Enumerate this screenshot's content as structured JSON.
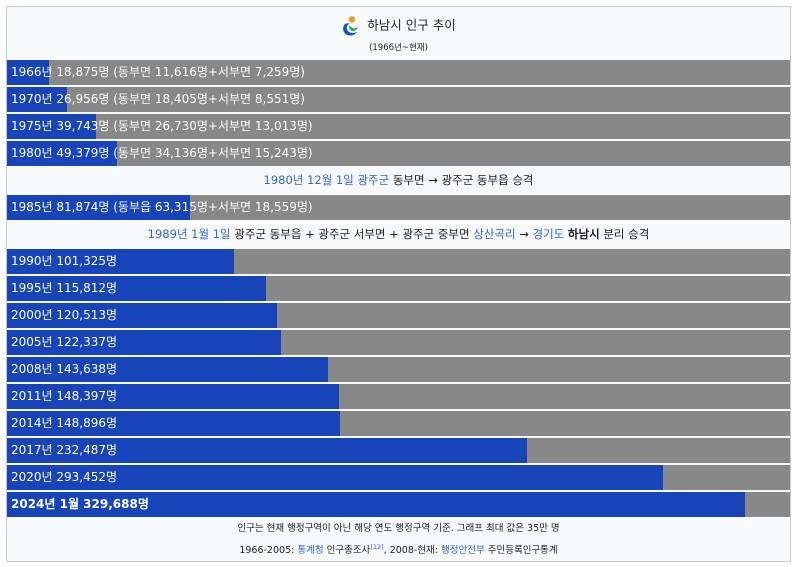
{
  "title": "하남시 인구 추이",
  "subtitle": "(1966년~현재)",
  "colors": {
    "fill": "#1744b8",
    "track": "#888888",
    "link": "#3366cc",
    "background": "#f8f9fa"
  },
  "logo_icon": "hanam-city-emblem-icon",
  "chart_data": {
    "type": "bar",
    "orientation": "horizontal",
    "xlim": [
      0,
      350000
    ],
    "unit": "명",
    "categories": [
      "1966년",
      "1970년",
      "1975년",
      "1980년",
      "1985년",
      "1990년",
      "1995년",
      "2000년",
      "2005년",
      "2008년",
      "2011년",
      "2014년",
      "2017년",
      "2020년",
      "2024년 1월"
    ],
    "values": [
      18875,
      26956,
      39743,
      49379,
      81874,
      101325,
      115812,
      120513,
      122337,
      143638,
      148397,
      148896,
      232487,
      293452,
      329688
    ]
  },
  "rows": [
    {
      "label": "1966년 18,875명 (동부면 11,616명+서부면 7,259명)"
    },
    {
      "label": "1970년 26,956명 (동부면 18,405명+서부면 8,551명)"
    },
    {
      "label": "1975년 39,743명 (동부면 26,730명+서부면 13,013명)"
    },
    {
      "label": "1980년 49,379명 (동부면 34,136명+서부면 15,243명)"
    },
    {
      "label": "1985년 81,874명 (동부읍 63,315명+서부면 18,559명)"
    },
    {
      "label": "1990년 101,325명"
    },
    {
      "label": "1995년 115,812명"
    },
    {
      "label": "2000년 120,513명"
    },
    {
      "label": "2005년 122,337명"
    },
    {
      "label": "2008년 143,638명"
    },
    {
      "label": "2011년 148,397명"
    },
    {
      "label": "2014년 148,896명"
    },
    {
      "label": "2017년 232,487명"
    },
    {
      "label": "2020년 293,452명"
    },
    {
      "label": "2024년 1월 329,688명"
    }
  ],
  "notes": [
    {
      "date": "1980년 12월 1일",
      "county": "광주군",
      "text": " 동부면 → 광주군 동부읍 승격"
    },
    {
      "date": "1989년 1월 1일",
      "t1": " 광주군 동부읍 + 광주군 서부면 + 광주군 중부면 ",
      "village": "상산곡리",
      "arrow": " → ",
      "province": "경기도",
      "space": " ",
      "city": "하남시",
      "t2": " 분리 승격"
    }
  ],
  "footer": {
    "line1": "인구는 현재 행정구역이 아닌 해당 연도 행정구역 기준. 그래프 최대 값은 35만 명",
    "line2_prefix": "1966-2005: ",
    "source1": "통계청",
    "line2_mid": " 인구총조사",
    "ref": "[12]",
    "line2_mid2": ", 2008-현재: ",
    "source2": "행정안전부",
    "line2_suffix": " 주민등록인구통계"
  }
}
